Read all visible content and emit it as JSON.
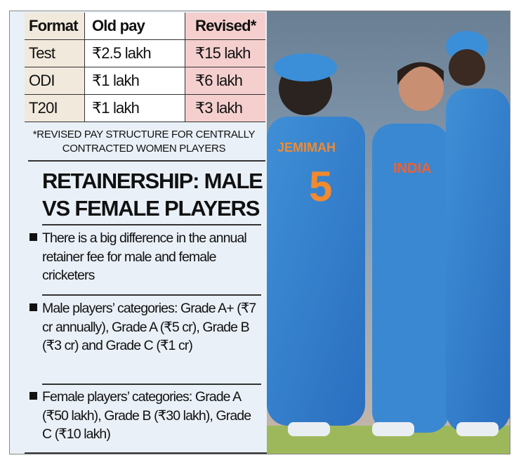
{
  "table": {
    "headers": [
      "Format",
      "Old pay",
      "Revised*"
    ],
    "rows": [
      [
        "Test",
        "₹2.5 lakh",
        "₹15 lakh"
      ],
      [
        "ODI",
        "₹1 lakh",
        "₹6 lakh"
      ],
      [
        "T20I",
        "₹1 lakh",
        "₹3 lakh"
      ]
    ],
    "colors": {
      "format_col": "#f1e9dc",
      "revised_col": "#f5cfce"
    }
  },
  "footnote": [
    "*REVISED PAY STRUCTURE FOR CENTRALLY",
    "CONTRACTED WOMEN PLAYERS"
  ],
  "heading": [
    "RETAINERSHIP: MALE",
    "VS FEMALE PLAYERS"
  ],
  "bullets": [
    "There is a big difference in the annual retainer fee for male and female cricketers",
    "Male players’ categories: Grade A+ (₹7 cr annually), Grade A (₹5 cr), Grade B (₹3 cr) and Grade C (₹1 cr)",
    "Female players’ categories: Grade A (₹50 lakh), Grade B (₹30 lakh), Grade C (₹10 lakh)"
  ],
  "photo": {
    "jersey_name": "JEMIMAH",
    "jersey_number": "5",
    "chest_logo": "INDIA"
  }
}
